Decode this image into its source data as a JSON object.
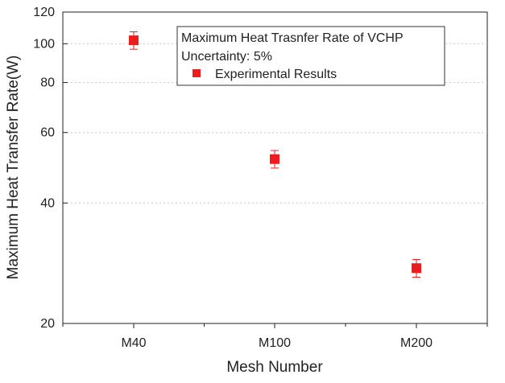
{
  "chart_data": {
    "type": "scatter",
    "title": "",
    "xlabel": "Mesh Number",
    "ylabel": "Maximum Heat Transfer Rate(W)",
    "categories": [
      "M40",
      "M100",
      "M200"
    ],
    "y_scale": "log",
    "ylim": [
      20,
      120
    ],
    "y_ticks": [
      20,
      40,
      60,
      80,
      100,
      120
    ],
    "y_tick_labels": [
      "20",
      "40",
      "60",
      "80",
      "100",
      "120"
    ],
    "grid": "horizontal dotted",
    "series": [
      {
        "name": "Experimental Results",
        "values": [
          102,
          51.5,
          27.5
        ],
        "error": [
          5.1,
          2.6,
          1.4
        ],
        "color": "#ee1c1c",
        "marker": "square"
      }
    ],
    "legend": {
      "position": "top-right",
      "title_line_1": "Maximum Heat Trasnfer Rate of VCHP",
      "title_line_2": "Uncertainty: 5%",
      "entry": "Experimental Results"
    }
  }
}
